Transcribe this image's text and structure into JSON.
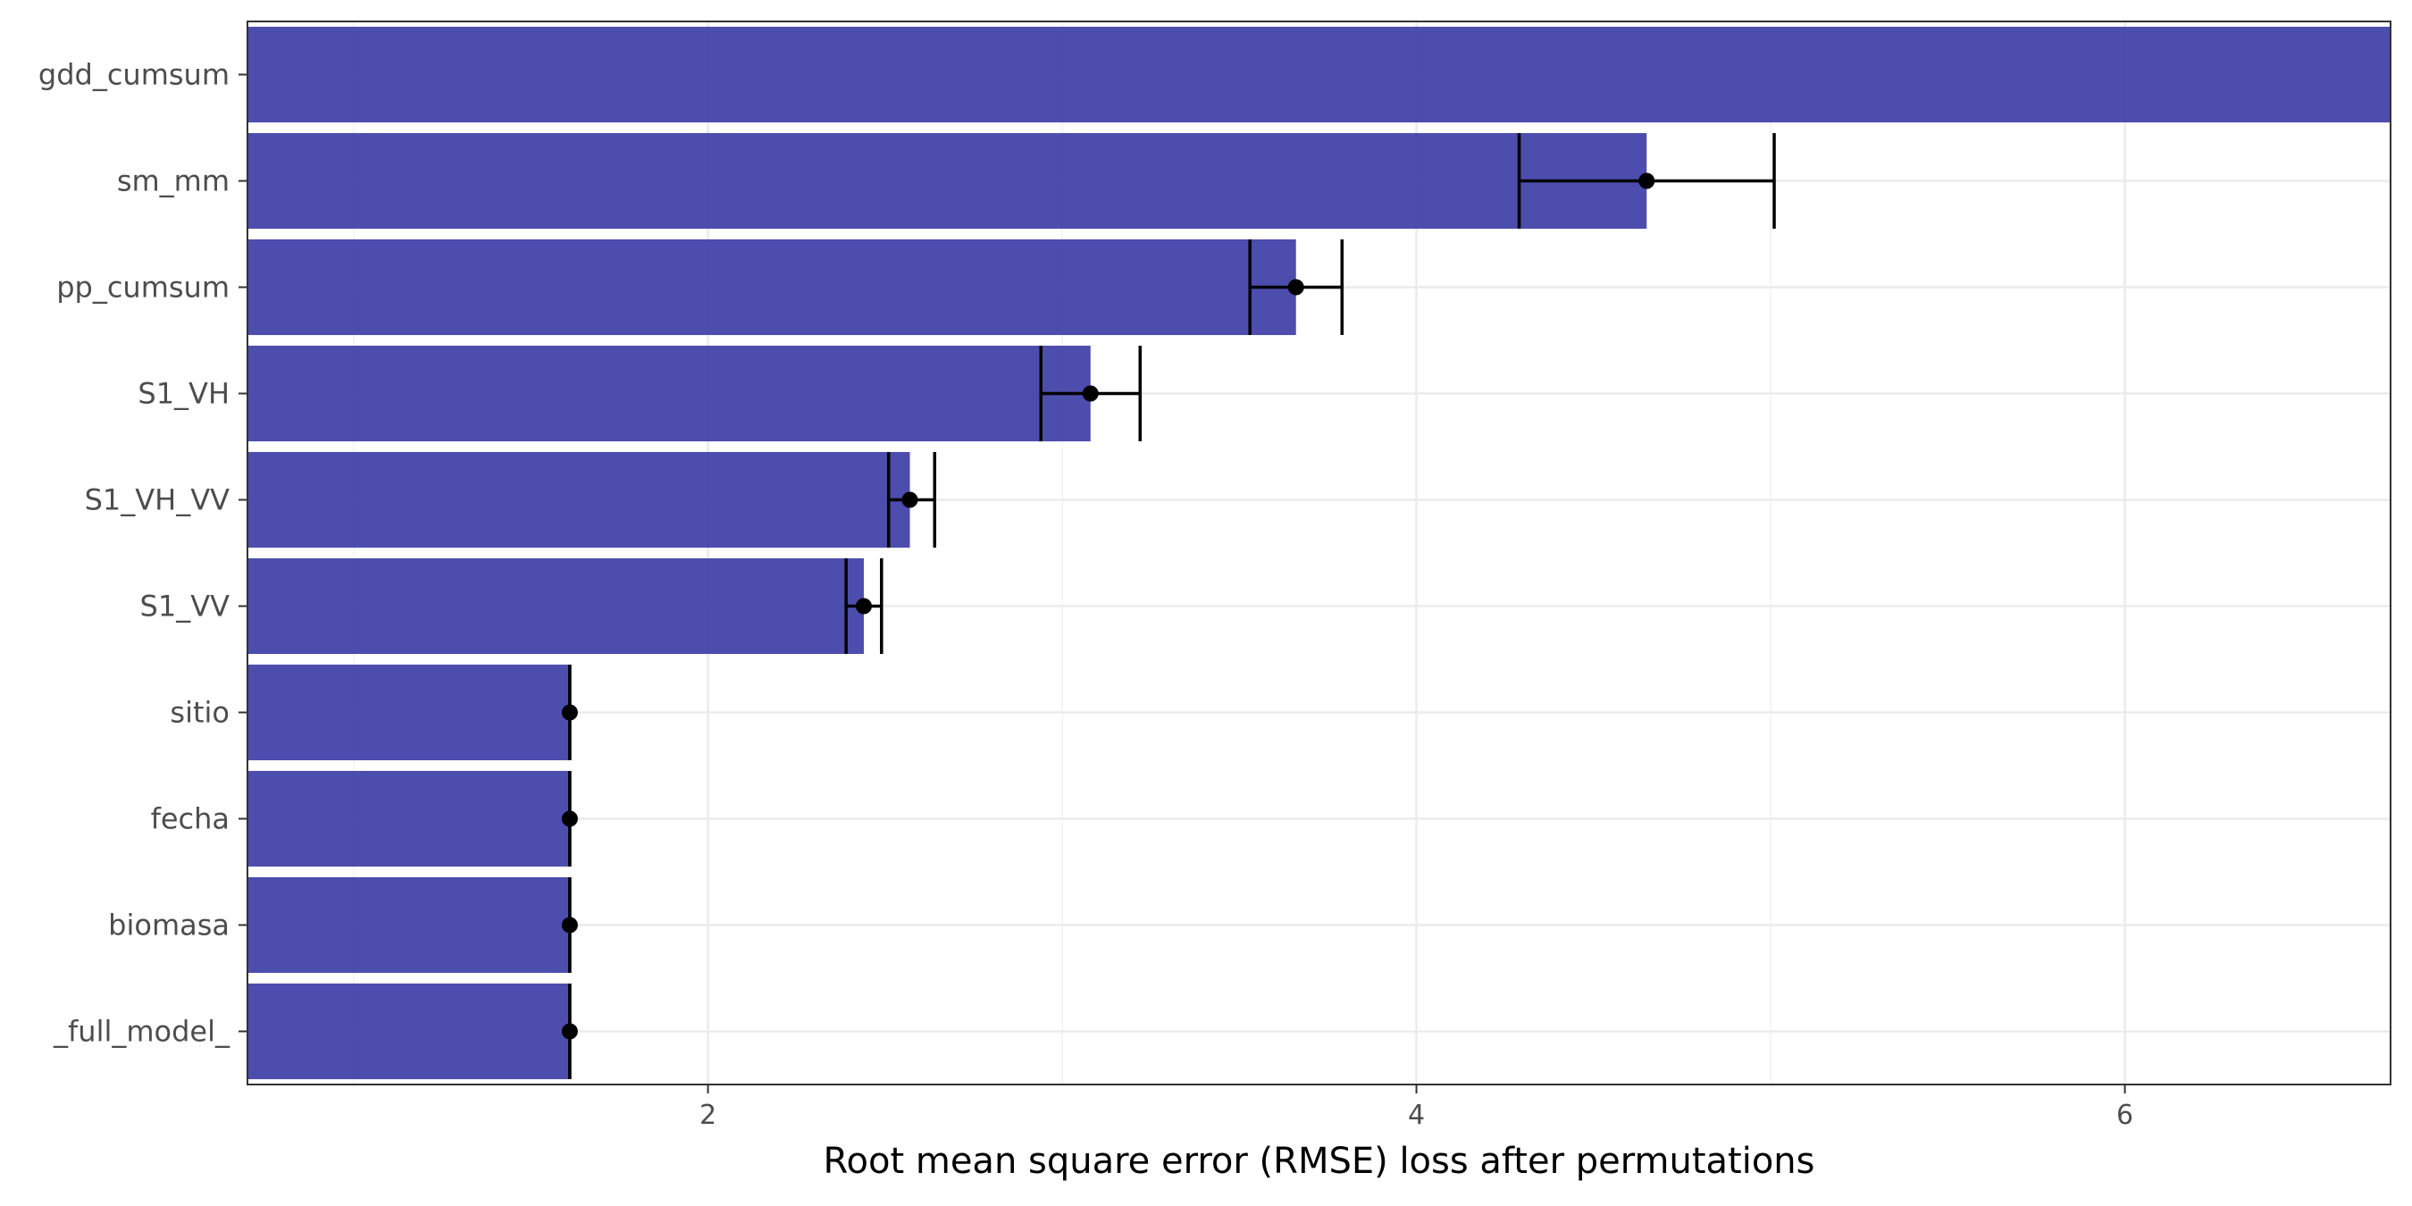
{
  "chart_data": {
    "type": "bar",
    "orientation": "horizontal",
    "title": "",
    "xlabel": "Root mean square error (RMSE) loss after permutations",
    "ylabel": "",
    "xlim": [
      0.7,
      6.75
    ],
    "xticks": [
      2,
      4,
      6
    ],
    "grid": true,
    "bar_color": "#3F3FA8",
    "categories": [
      "gdd_cumsum",
      "sm_mm",
      "pp_cumsum",
      "S1_VH",
      "S1_VH_VV",
      "S1_VV",
      "sitio",
      "fecha",
      "biomasa",
      "_full_model_"
    ],
    "values": [
      6.9,
      4.65,
      3.66,
      3.08,
      2.57,
      2.44,
      1.61,
      1.61,
      1.61,
      1.61
    ],
    "error_low": [
      null,
      4.29,
      3.53,
      2.94,
      2.51,
      2.39,
      1.61,
      1.61,
      1.61,
      1.61
    ],
    "error_high": [
      null,
      5.01,
      3.79,
      3.22,
      2.64,
      2.49,
      1.61,
      1.61,
      1.61,
      1.61
    ]
  }
}
